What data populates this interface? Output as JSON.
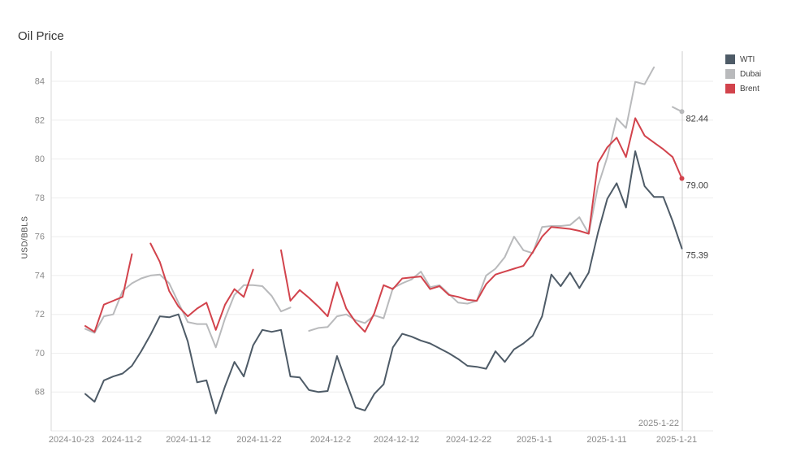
{
  "title": "Oil Price",
  "legend": {
    "items": [
      "WTI",
      "Dubai",
      "Brent"
    ]
  },
  "chart_data": {
    "type": "line",
    "title": "Oil Price",
    "xlabel": "",
    "ylabel": "USD/BBLS",
    "ylim": [
      66,
      85.55
    ],
    "y_ticks": [
      68,
      70,
      72,
      74,
      76,
      78,
      80,
      82,
      84
    ],
    "grid": "horizontal",
    "legend_position": "top-right",
    "x_ticks": [
      {
        "label": "2024-10-23",
        "f": 0.0307
      },
      {
        "label": "2024-11-2",
        "f": 0.1068
      },
      {
        "label": "2024-11-12",
        "f": 0.2074
      },
      {
        "label": "2024-11-22",
        "f": 0.3141
      },
      {
        "label": "2024-12-2",
        "f": 0.4221
      },
      {
        "label": "2024-12-12",
        "f": 0.5215
      },
      {
        "label": "2024-12-22",
        "f": 0.6307
      },
      {
        "label": "2025-1-1",
        "f": 0.7301
      },
      {
        "label": "2025-1-11",
        "f": 0.8393
      },
      {
        "label": "2025-1-21",
        "f": 0.9448
      }
    ],
    "x_start_f": 0.0515,
    "x_end_f": 0.9528,
    "ref_line": {
      "label": "2025-1-22",
      "f": 0.9534
    },
    "dates": [
      "2024-10-24",
      "2024-10-25",
      "2024-10-28",
      "2024-10-29",
      "2024-10-30",
      "2024-10-31",
      "2024-11-1",
      "2024-11-4",
      "2024-11-5",
      "2024-11-6",
      "2024-11-7",
      "2024-11-8",
      "2024-11-11",
      "2024-11-12",
      "2024-11-13",
      "2024-11-14",
      "2024-11-15",
      "2024-11-18",
      "2024-11-19",
      "2024-11-20",
      "2024-11-21",
      "2024-11-22",
      "2024-11-25",
      "2024-11-26",
      "2024-11-27",
      "2024-11-28",
      "2024-11-29",
      "2024-12-2",
      "2024-12-3",
      "2024-12-4",
      "2024-12-5",
      "2024-12-6",
      "2024-12-9",
      "2024-12-10",
      "2024-12-11",
      "2024-12-12",
      "2024-12-13",
      "2024-12-16",
      "2024-12-17",
      "2024-12-18",
      "2024-12-19",
      "2024-12-20",
      "2024-12-23",
      "2024-12-24",
      "2024-12-25",
      "2024-12-26",
      "2024-12-27",
      "2024-12-30",
      "2024-12-31",
      "2025-1-1",
      "2025-1-2",
      "2025-1-3",
      "2025-1-6",
      "2025-1-7",
      "2025-1-8",
      "2025-1-9",
      "2025-1-10",
      "2025-1-13",
      "2025-1-14",
      "2025-1-15",
      "2025-1-16",
      "2025-1-17",
      "2025-1-20",
      "2025-1-21",
      "2025-1-22"
    ],
    "series": [
      {
        "name": "WTI",
        "color": "#4e5b67",
        "end_label": "75.39",
        "end_dot": false,
        "values": [
          67.9,
          67.5,
          68.6,
          68.8,
          68.95,
          69.35,
          70.1,
          70.95,
          71.9,
          71.85,
          72.0,
          70.6,
          68.5,
          68.6,
          66.9,
          68.3,
          69.55,
          68.8,
          70.4,
          71.2,
          71.1,
          71.2,
          68.8,
          68.75,
          68.1,
          68.0,
          68.05,
          69.85,
          68.5,
          67.2,
          67.05,
          67.9,
          68.4,
          70.3,
          71.0,
          70.85,
          70.65,
          70.5,
          70.25,
          70.0,
          69.7,
          69.35,
          69.3,
          69.2,
          70.1,
          69.55,
          70.2,
          70.5,
          70.9,
          71.9,
          74.05,
          73.45,
          74.15,
          73.35,
          74.15,
          76.2,
          77.95,
          78.75,
          77.5,
          80.4,
          78.6,
          78.05,
          78.05,
          76.8,
          75.39
        ]
      },
      {
        "name": "Dubai",
        "color": "#b9babc",
        "end_label": "82.44",
        "end_dot": true,
        "values": [
          71.25,
          71.05,
          71.9,
          72.0,
          73.2,
          73.6,
          73.85,
          74.0,
          74.05,
          73.6,
          72.6,
          71.6,
          71.5,
          71.5,
          70.3,
          71.8,
          73.0,
          73.5,
          73.5,
          73.45,
          72.95,
          72.15,
          72.35,
          null,
          71.15,
          71.3,
          71.35,
          71.9,
          72.0,
          71.7,
          71.55,
          71.95,
          71.8,
          73.35,
          73.6,
          73.8,
          74.2,
          73.4,
          73.5,
          73.05,
          72.6,
          72.55,
          72.7,
          74.0,
          74.35,
          74.95,
          76.0,
          75.3,
          75.15,
          76.5,
          76.55,
          76.55,
          76.6,
          77.0,
          76.15,
          78.6,
          80.1,
          82.1,
          81.6,
          83.97,
          83.85,
          84.72,
          null,
          82.68,
          82.44
        ]
      },
      {
        "name": "Brent",
        "color": "#d2434c",
        "end_label": "79.00",
        "end_dot": true,
        "values": [
          71.4,
          71.1,
          72.5,
          72.7,
          72.9,
          75.1,
          null,
          75.65,
          74.7,
          73.2,
          72.4,
          71.9,
          72.3,
          72.6,
          71.2,
          72.5,
          73.3,
          72.9,
          74.3,
          null,
          null,
          75.3,
          72.7,
          73.25,
          72.85,
          72.4,
          71.9,
          73.65,
          72.3,
          71.6,
          71.1,
          72.05,
          73.5,
          73.3,
          73.85,
          73.9,
          73.95,
          73.3,
          73.45,
          73.0,
          72.9,
          72.75,
          72.7,
          73.55,
          74.05,
          74.2,
          74.35,
          74.5,
          75.2,
          76.0,
          76.5,
          76.45,
          76.4,
          76.3,
          76.15,
          79.8,
          80.6,
          81.1,
          80.1,
          82.1,
          81.2,
          80.85,
          80.5,
          80.1,
          79.0
        ]
      }
    ]
  },
  "colors": {
    "title_text": "#333333",
    "axis_text": "#8a8a8a",
    "gridline": "#eeeeee",
    "axis_line": "#d9d9d9",
    "reference_line": "#cccccc",
    "end_label_text": "#3b3b3b",
    "reference_label_text": "#888888"
  }
}
